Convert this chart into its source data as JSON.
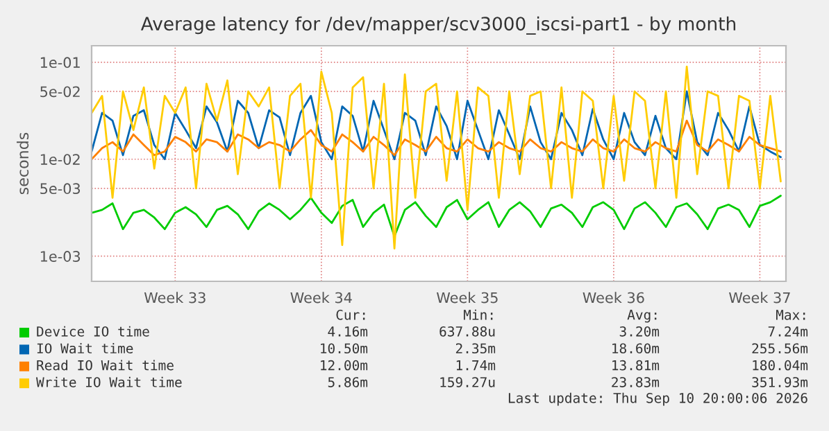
{
  "chart_data": {
    "type": "line",
    "title": "Average latency for /dev/mapper/scv3000_iscsi-part1 - by month",
    "ylabel": "seconds",
    "categories": [
      null,
      null,
      null,
      null,
      null,
      null,
      null,
      null,
      "Week 33",
      null,
      null,
      null,
      null,
      null,
      null,
      null,
      null,
      null,
      null,
      null,
      null,
      null,
      "Week 34",
      null,
      null,
      null,
      null,
      null,
      null,
      null,
      null,
      null,
      null,
      null,
      null,
      null,
      "Week 35",
      null,
      null,
      null,
      null,
      null,
      null,
      null,
      null,
      null,
      null,
      null,
      null,
      null,
      "Week 36",
      null,
      null,
      null,
      null,
      null,
      null,
      null,
      null,
      null,
      null,
      null,
      null,
      null,
      "Week 37",
      null,
      null
    ],
    "series": [
      {
        "name": "Device IO time",
        "color": "#00cc00",
        "values": [
          0.0028,
          0.003,
          0.0035,
          0.0019,
          0.0028,
          0.003,
          0.0025,
          0.0019,
          0.0028,
          0.0032,
          0.0027,
          0.002,
          0.003,
          0.0033,
          0.0027,
          0.0019,
          0.0029,
          0.0035,
          0.003,
          0.0024,
          0.003,
          0.004,
          0.0028,
          0.0022,
          0.0033,
          0.0038,
          0.002,
          0.0028,
          0.0034,
          0.0016,
          0.003,
          0.0036,
          0.0026,
          0.002,
          0.0032,
          0.0038,
          0.0024,
          0.003,
          0.0036,
          0.002,
          0.003,
          0.0036,
          0.0029,
          0.002,
          0.0031,
          0.0034,
          0.0028,
          0.002,
          0.0032,
          0.0036,
          0.003,
          0.0019,
          0.0031,
          0.0036,
          0.0028,
          0.002,
          0.0032,
          0.0035,
          0.0027,
          0.0019,
          0.0031,
          0.0034,
          0.003,
          0.002,
          0.0033,
          0.0036,
          0.0042
        ]
      },
      {
        "name": "IO Wait time",
        "color": "#0066b3",
        "values": [
          0.012,
          0.03,
          0.025,
          0.011,
          0.028,
          0.032,
          0.014,
          0.01,
          0.03,
          0.02,
          0.013,
          0.035,
          0.024,
          0.012,
          0.04,
          0.03,
          0.013,
          0.032,
          0.027,
          0.011,
          0.03,
          0.045,
          0.015,
          0.01,
          0.035,
          0.028,
          0.012,
          0.04,
          0.02,
          0.01,
          0.03,
          0.025,
          0.011,
          0.035,
          0.022,
          0.01,
          0.04,
          0.02,
          0.01,
          0.032,
          0.018,
          0.01,
          0.035,
          0.015,
          0.01,
          0.03,
          0.02,
          0.011,
          0.033,
          0.016,
          0.01,
          0.03,
          0.015,
          0.011,
          0.028,
          0.013,
          0.01,
          0.05,
          0.015,
          0.011,
          0.03,
          0.02,
          0.012,
          0.035,
          0.014,
          0.012,
          0.0105
        ]
      },
      {
        "name": "Read IO Wait time",
        "color": "#ff8000",
        "values": [
          0.01,
          0.013,
          0.015,
          0.012,
          0.018,
          0.014,
          0.011,
          0.012,
          0.017,
          0.015,
          0.012,
          0.016,
          0.015,
          0.012,
          0.018,
          0.016,
          0.013,
          0.015,
          0.014,
          0.012,
          0.016,
          0.02,
          0.014,
          0.012,
          0.018,
          0.015,
          0.012,
          0.017,
          0.014,
          0.011,
          0.016,
          0.014,
          0.012,
          0.017,
          0.013,
          0.012,
          0.016,
          0.013,
          0.012,
          0.015,
          0.013,
          0.012,
          0.016,
          0.013,
          0.012,
          0.015,
          0.013,
          0.012,
          0.016,
          0.013,
          0.012,
          0.016,
          0.013,
          0.012,
          0.015,
          0.013,
          0.012,
          0.025,
          0.014,
          0.012,
          0.016,
          0.014,
          0.012,
          0.017,
          0.014,
          0.013,
          0.012
        ]
      },
      {
        "name": "Write IO Wait time",
        "color": "#ffcc00",
        "values": [
          0.03,
          0.045,
          0.004,
          0.05,
          0.02,
          0.055,
          0.008,
          0.045,
          0.03,
          0.055,
          0.005,
          0.06,
          0.025,
          0.065,
          0.007,
          0.05,
          0.035,
          0.055,
          0.005,
          0.045,
          0.06,
          0.004,
          0.08,
          0.03,
          0.0013,
          0.055,
          0.07,
          0.005,
          0.06,
          0.0012,
          0.075,
          0.004,
          0.05,
          0.06,
          0.006,
          0.05,
          0.003,
          0.055,
          0.045,
          0.004,
          0.05,
          0.007,
          0.045,
          0.05,
          0.005,
          0.055,
          0.004,
          0.05,
          0.04,
          0.005,
          0.045,
          0.006,
          0.05,
          0.04,
          0.005,
          0.05,
          0.004,
          0.09,
          0.007,
          0.05,
          0.045,
          0.005,
          0.045,
          0.04,
          0.005,
          0.045,
          0.0059
        ]
      }
    ],
    "log": "y",
    "ylim": [
      0.00055,
      0.148
    ],
    "yticks": [
      {
        "value": 0.1,
        "label": "1e-01"
      },
      {
        "value": 0.05,
        "label": "5e-02"
      },
      {
        "value": 0.01,
        "label": "1e-02"
      },
      {
        "value": 0.005,
        "label": "5e-03"
      },
      {
        "value": 0.001,
        "label": "1e-03"
      }
    ],
    "grid": true,
    "legend": "bottom",
    "line_style": "solid",
    "marker": "none",
    "annotations": [
      "Cur:",
      "Min:",
      "Avg:",
      "Max:",
      "4.16m",
      "637.88u",
      "3.20m",
      "7.24m",
      "10.50m",
      "2.35m",
      "18.60m",
      "255.56m",
      "12.00m",
      "1.74m",
      "13.81m",
      "180.04m",
      "5.86m",
      "159.27u",
      "23.83m",
      "351.93m",
      "Last update: Thu Sep 10 20:00:06 2026"
    ]
  }
}
